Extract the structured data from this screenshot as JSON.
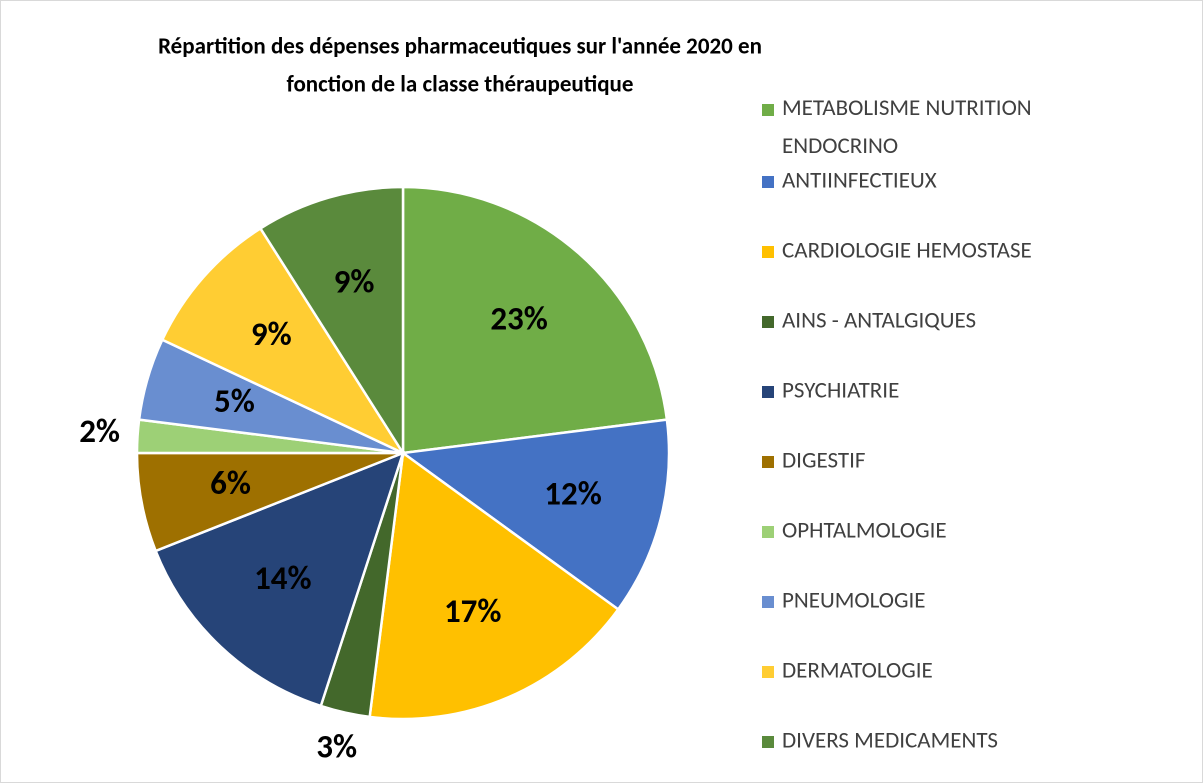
{
  "chart_data": {
    "type": "pie",
    "title": [
      "Répartition des dépenses pharmaceutiques sur l'année 2020 en",
      "fonction de la classe théraupeutique"
    ],
    "categories": [
      "METABOLISME NUTRITION ENDOCRINO",
      "ANTIINFECTIEUX",
      "CARDIOLOGIE HEMOSTASE",
      "AINS - ANTALGIQUES",
      "PSYCHIATRIE",
      "DIGESTIF",
      "OPHTALMOLOGIE",
      "PNEUMOLOGIE",
      "DERMATOLOGIE",
      "DIVERS MEDICAMENTS"
    ],
    "values": [
      23,
      12,
      17,
      3,
      14,
      6,
      2,
      5,
      9,
      9
    ],
    "value_labels": [
      "23%",
      "12%",
      "17%",
      "3%",
      "14%",
      "6%",
      "2%",
      "5%",
      "9%",
      "9%"
    ],
    "colors": [
      "#70ad47",
      "#4472c4",
      "#ffc000",
      "#43682b",
      "#264478",
      "#9e7000",
      "#9dd076",
      "#698ed0",
      "#ffcd33",
      "#5a8a3c"
    ],
    "legend": "right"
  }
}
